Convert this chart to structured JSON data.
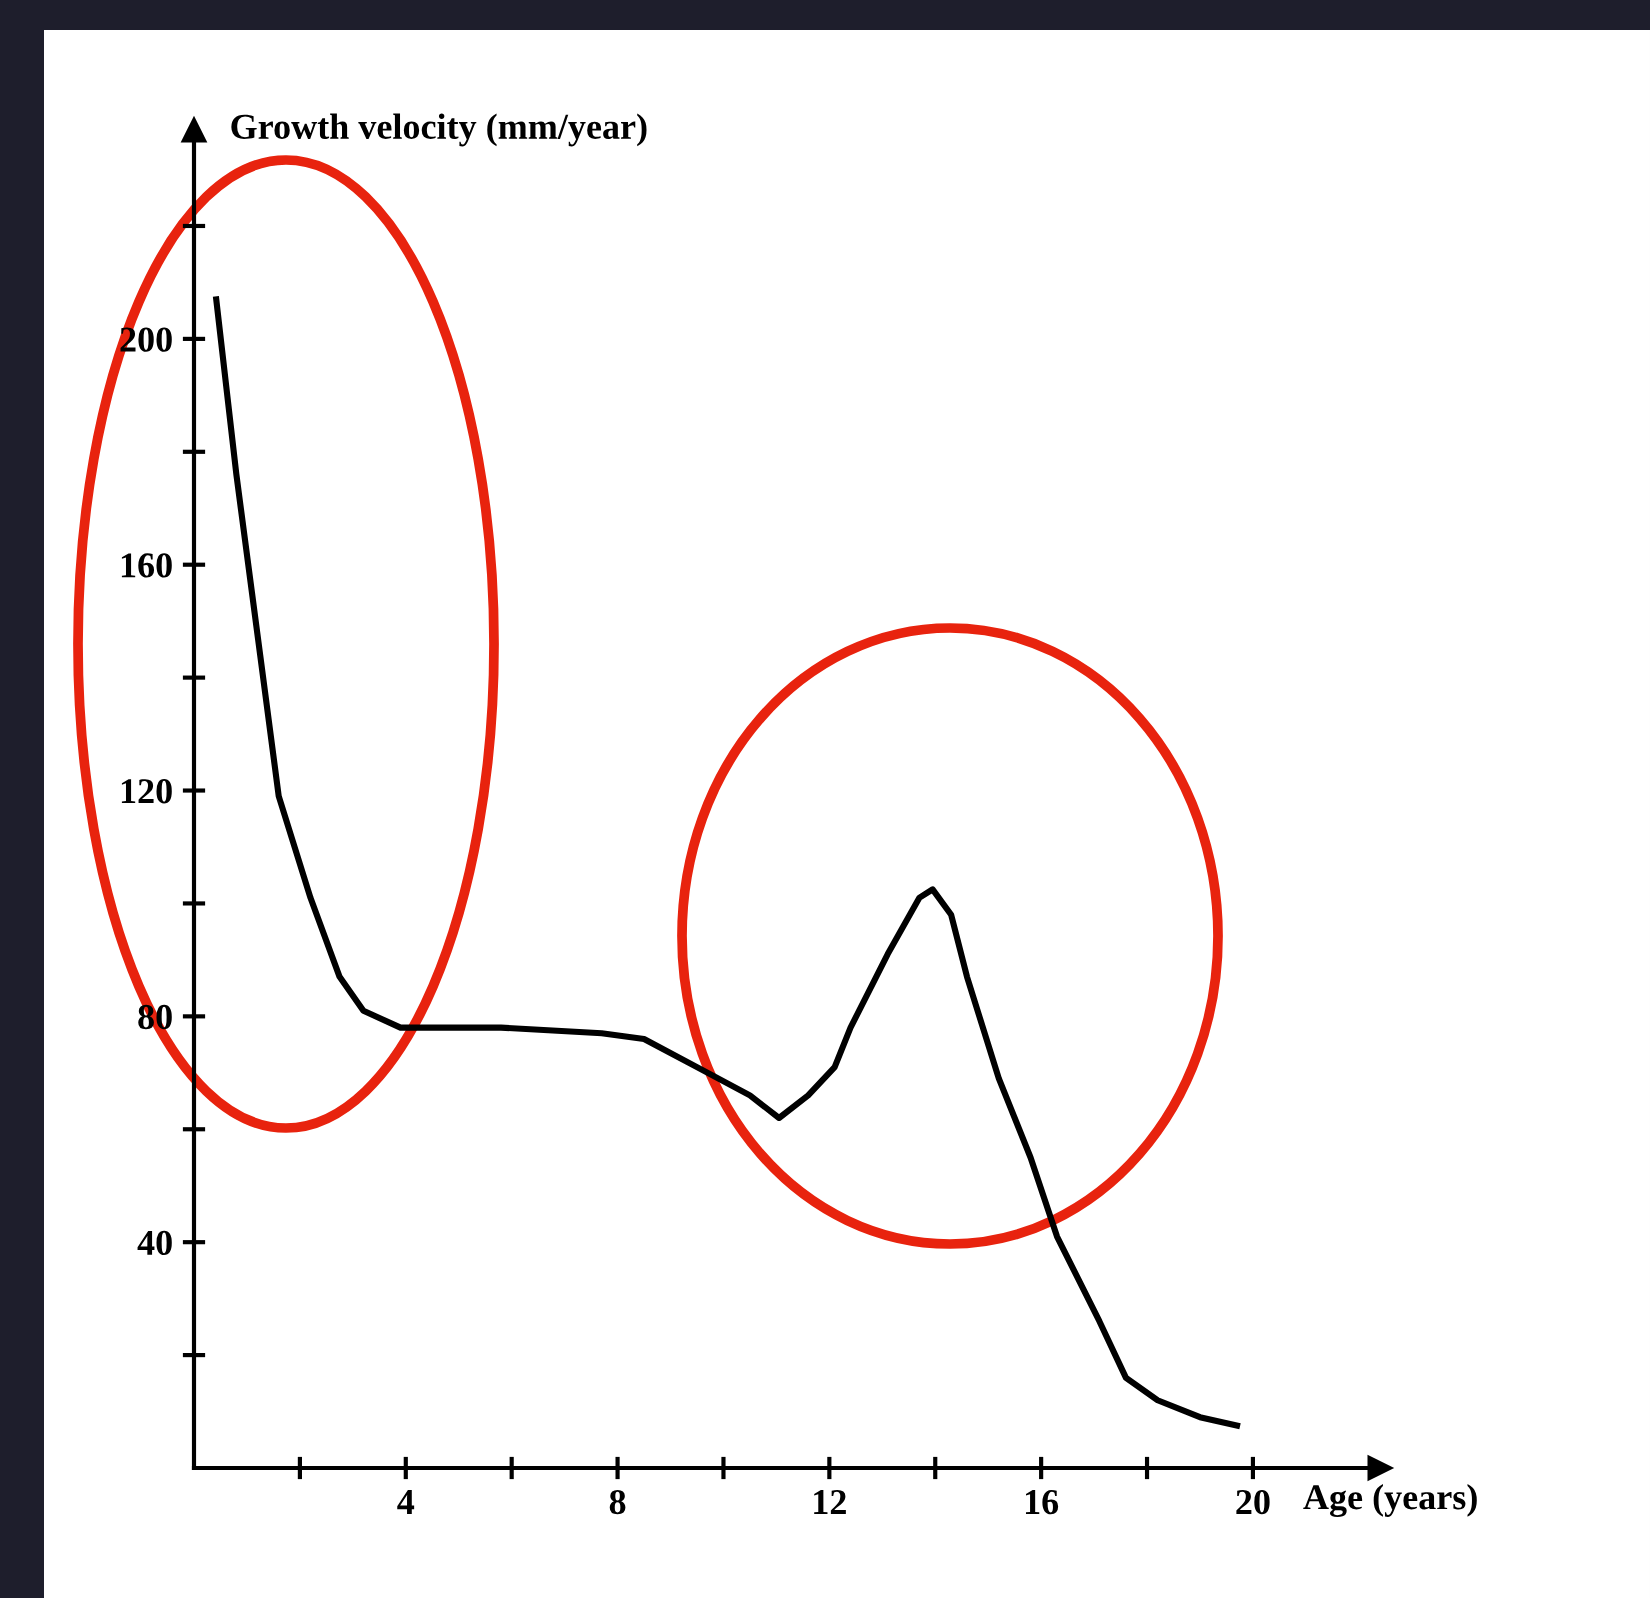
{
  "chart_data": {
    "type": "line",
    "xlabel": "Age (years)",
    "ylabel": "Growth velocity (mm/year)",
    "series": [
      {
        "color": "#000000",
        "x": [
          0.42,
          0.8,
          1.25,
          1.6,
          2.2,
          2.75,
          3.2,
          3.9,
          5.8,
          7.7,
          8.5,
          9.5,
          10.5,
          11.05,
          11.6,
          12.1,
          12.4,
          13.1,
          13.7,
          13.95,
          14.3,
          14.6,
          15.2,
          15.8,
          16.3,
          17.1,
          17.6,
          18.2,
          19,
          19.7
        ],
        "values": [
          207,
          176,
          144,
          119,
          101,
          87,
          81,
          78,
          78,
          77,
          76,
          71,
          66,
          62,
          66,
          71,
          78,
          91,
          101,
          102.5,
          98,
          87,
          69,
          55,
          41,
          26,
          16,
          12,
          9,
          7.5
        ]
      }
    ],
    "xlim": [
      0,
      22.4
    ],
    "ylim": [
      0,
      237
    ],
    "xticks": [
      {
        "value": 2,
        "label": null
      },
      4,
      {
        "value": 6,
        "label": null
      },
      8,
      {
        "value": 10,
        "label": null
      },
      12,
      {
        "value": 14,
        "label": null
      },
      16,
      {
        "value": 18,
        "label": null
      },
      20
    ],
    "yticks": [
      {
        "value": 20,
        "label": null
      },
      40,
      {
        "value": 60,
        "label": null
      },
      80,
      {
        "value": 100,
        "label": null
      },
      120,
      {
        "value": 140,
        "label": null
      },
      160,
      {
        "value": 180,
        "label": null
      },
      200,
      {
        "value": 220,
        "label": null
      }
    ],
    "grid": false,
    "marker": "none",
    "line_style": "solid"
  }
}
